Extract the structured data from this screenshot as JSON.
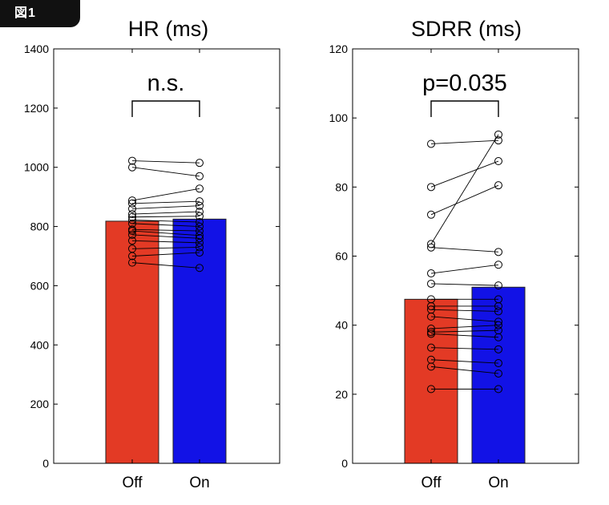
{
  "figure_label": "図1",
  "chart_data": [
    {
      "type": "bar",
      "title": "HR (ms)",
      "categories": [
        "Off",
        "On"
      ],
      "values": [
        818,
        825
      ],
      "colors": [
        "#e33a25",
        "#1212e6"
      ],
      "ylim": [
        0,
        1400
      ],
      "yticks": [
        0,
        200,
        400,
        600,
        800,
        1000,
        1200,
        1400
      ],
      "annotation": "n.s.",
      "paired_points": [
        [
          1022,
          1015
        ],
        [
          1000,
          970
        ],
        [
          888,
          928
        ],
        [
          878,
          885
        ],
        [
          860,
          870
        ],
        [
          842,
          850
        ],
        [
          832,
          835
        ],
        [
          822,
          815
        ],
        [
          810,
          800
        ],
        [
          790,
          785
        ],
        [
          785,
          770
        ],
        [
          772,
          760
        ],
        [
          752,
          745
        ],
        [
          725,
          730
        ],
        [
          700,
          712
        ],
        [
          678,
          660
        ]
      ]
    },
    {
      "type": "bar",
      "title": "SDRR (ms)",
      "categories": [
        "Off",
        "On"
      ],
      "values": [
        47.5,
        51
      ],
      "colors": [
        "#e33a25",
        "#1212e6"
      ],
      "ylim": [
        0,
        120
      ],
      "yticks": [
        0,
        20,
        40,
        60,
        80,
        100,
        120
      ],
      "annotation": "p=0.035",
      "paired_points": [
        [
          92.5,
          93.5
        ],
        [
          80,
          87.5
        ],
        [
          72,
          80.5
        ],
        [
          63.5,
          95.2
        ],
        [
          62.5,
          61.2
        ],
        [
          55,
          57.5
        ],
        [
          52,
          51.5
        ],
        [
          47.5,
          47.5
        ],
        [
          45.5,
          45.5
        ],
        [
          44.5,
          44
        ],
        [
          42.5,
          41
        ],
        [
          39,
          40
        ],
        [
          38,
          38.5
        ],
        [
          37.5,
          36.5
        ],
        [
          33.5,
          33
        ],
        [
          30,
          29
        ],
        [
          28,
          26
        ],
        [
          21.5,
          21.5
        ]
      ]
    }
  ]
}
